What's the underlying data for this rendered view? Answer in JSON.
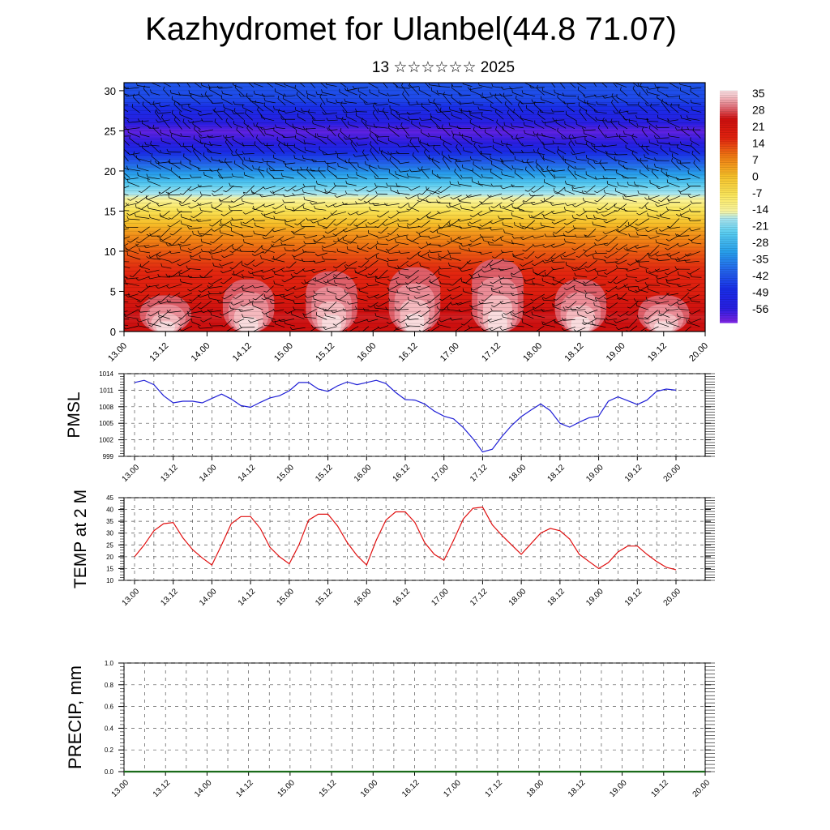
{
  "header": {
    "title": "Kazhydromet for Ulanbel(44.8 71.07)",
    "subtitle": "13 ☆☆☆☆☆☆ 2025"
  },
  "time_ticks": [
    "13.00",
    "13.12",
    "14.00",
    "14.12",
    "15.00",
    "15.12",
    "16.00",
    "16.12",
    "17.00",
    "17.12",
    "18.00",
    "18.12",
    "19.00",
    "19.12",
    "20.00"
  ],
  "chart_data": [
    {
      "type": "heatmap",
      "ylim": [
        0,
        31
      ],
      "yticks": [
        0,
        5,
        10,
        15,
        20,
        25,
        30
      ],
      "xlim": [
        0,
        168
      ],
      "colorbar": {
        "labels": [
          "35",
          "28",
          "21",
          "14",
          "7",
          "0",
          "-7",
          "-14",
          "-21",
          "-28",
          "-35",
          "-42",
          "-49",
          "-56"
        ],
        "range": [
          -60,
          38
        ]
      },
      "temperature_profile": {
        "heights": [
          0,
          2,
          5,
          8,
          10,
          12,
          14,
          16,
          18,
          20,
          22,
          23.5,
          25,
          27,
          29,
          31
        ],
        "temps": [
          25,
          27,
          20,
          17,
          13,
          8,
          0,
          -10,
          -20,
          -32,
          -44,
          -54,
          -58,
          -50,
          -42,
          -40
        ]
      },
      "warm_columns": [
        {
          "x": 12,
          "top": 4.5
        },
        {
          "x": 36,
          "top": 6.5
        },
        {
          "x": 60,
          "top": 7.5
        },
        {
          "x": 84,
          "top": 8
        },
        {
          "x": 108,
          "top": 9
        },
        {
          "x": 132,
          "top": 6.5
        },
        {
          "x": 156,
          "top": 4.5
        }
      ]
    },
    {
      "type": "line",
      "ylabel": "PMSL",
      "ylim": [
        999,
        1014
      ],
      "yticks": [
        999,
        1002,
        1005,
        1008,
        1011,
        1014
      ],
      "x": [
        0,
        3,
        6,
        9,
        12,
        15,
        18,
        21,
        24,
        27,
        30,
        33,
        36,
        39,
        42,
        45,
        48,
        51,
        54,
        57,
        60,
        63,
        66,
        69,
        72,
        75,
        78,
        81,
        84,
        87,
        90,
        93,
        96,
        99,
        102,
        105,
        108,
        111,
        114,
        117,
        120,
        123,
        126,
        129,
        132,
        135,
        138,
        141,
        144,
        147,
        150,
        153,
        156,
        159,
        162,
        165,
        168
      ],
      "series": [
        {
          "color": "#1f1fd6",
          "values": [
            1012.4,
            1012.8,
            1012.0,
            1010.0,
            1008.7,
            1009.0,
            1009.0,
            1008.7,
            1009.5,
            1010.3,
            1009.4,
            1008.2,
            1007.9,
            1008.8,
            1009.6,
            1010.0,
            1010.9,
            1012.4,
            1012.4,
            1011.2,
            1010.8,
            1011.8,
            1012.5,
            1012.0,
            1012.4,
            1012.8,
            1012.2,
            1010.6,
            1009.3,
            1009.2,
            1008.5,
            1007.2,
            1006.3,
            1005.8,
            1004.2,
            1002.2,
            999.8,
            1000.3,
            1002.6,
            1004.6,
            1006.2,
            1007.4,
            1008.5,
            1007.3,
            1005.0,
            1004.3,
            1005.2,
            1006.0,
            1006.3,
            1009.0,
            1009.8,
            1009.1,
            1008.4,
            1009.2,
            1010.8,
            1011.2,
            1011.0
          ]
        }
      ]
    },
    {
      "type": "line",
      "ylabel": "TEMP at 2 M",
      "ylim": [
        10,
        45
      ],
      "yticks": [
        10,
        15,
        20,
        25,
        30,
        35,
        40,
        45
      ],
      "x": [
        0,
        3,
        6,
        9,
        12,
        15,
        18,
        21,
        24,
        27,
        30,
        33,
        36,
        39,
        42,
        45,
        48,
        51,
        54,
        57,
        60,
        63,
        66,
        69,
        72,
        75,
        78,
        81,
        84,
        87,
        90,
        93,
        96,
        99,
        102,
        105,
        108,
        111,
        114,
        117,
        120,
        123,
        126,
        129,
        132,
        135,
        138,
        141,
        144,
        147,
        150,
        153,
        156,
        159,
        162,
        165,
        168
      ],
      "series": [
        {
          "color": "#e01010",
          "values": [
            20,
            25,
            31,
            34,
            34.5,
            28,
            23,
            19.5,
            16.5,
            25,
            34,
            37,
            37,
            32,
            24,
            20,
            17,
            25,
            35.5,
            38,
            38,
            33,
            26,
            20.5,
            16.5,
            27,
            35.5,
            39,
            39,
            34.5,
            26,
            21,
            18.5,
            27,
            36,
            40.5,
            41,
            33.5,
            29,
            25,
            21,
            25.5,
            30,
            32,
            31,
            27.5,
            21,
            18,
            15,
            17.5,
            22,
            24.5,
            24.5,
            21,
            18,
            15.5,
            14.5
          ]
        }
      ]
    },
    {
      "type": "line",
      "ylabel": "PRECIP, mm",
      "ylim": [
        0,
        1.0
      ],
      "yticks": [
        "0.0",
        "0.2",
        "0.4",
        "0.6",
        "0.8",
        "1.0"
      ],
      "x": [
        0,
        168
      ],
      "series": [
        {
          "color": "#1a6b1a",
          "values": [
            0,
            0
          ]
        }
      ]
    }
  ]
}
